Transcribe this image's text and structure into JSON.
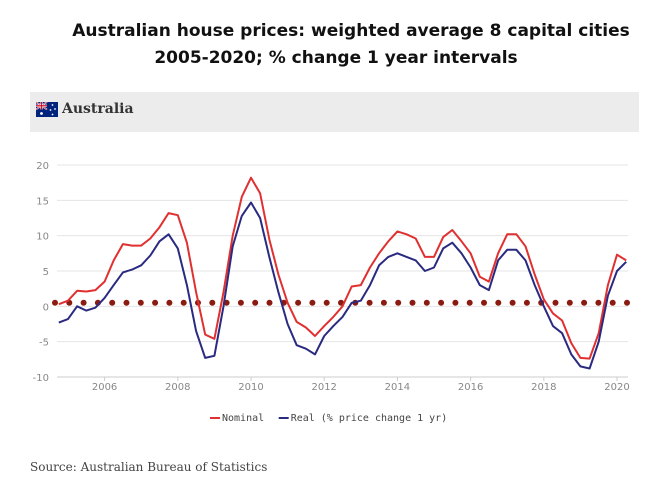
{
  "title_line1": "Australian house prices: weighted average 8 capital cities",
  "title_line2": "2005-2020; % change 1 year intervals",
  "banner": {
    "label": "Australia",
    "flag_icon": "australia-flag-icon"
  },
  "source": "Source: Australian Bureau of Statistics",
  "chart_data": {
    "type": "line",
    "xlim": [
      2004.7,
      2020.3
    ],
    "ylim": [
      -10,
      20
    ],
    "yticks": [
      -10,
      -5,
      0,
      5,
      10,
      15,
      20
    ],
    "xticks": [
      2006,
      2008,
      2010,
      2012,
      2014,
      2016,
      2018,
      2020
    ],
    "grid": "horizontal",
    "legend_position": "bottom",
    "reference_line": {
      "y": 0.5,
      "style": "dotted",
      "color": "#8b1a10"
    },
    "series": [
      {
        "name": "Nominal",
        "color": "#e03030",
        "x": [
          2004.75,
          2005.0,
          2005.25,
          2005.5,
          2005.75,
          2006.0,
          2006.25,
          2006.5,
          2006.75,
          2007.0,
          2007.25,
          2007.5,
          2007.75,
          2008.0,
          2008.25,
          2008.5,
          2008.75,
          2009.0,
          2009.25,
          2009.5,
          2009.75,
          2010.0,
          2010.25,
          2010.5,
          2010.75,
          2011.0,
          2011.25,
          2011.5,
          2011.75,
          2012.0,
          2012.25,
          2012.5,
          2012.75,
          2013.0,
          2013.25,
          2013.5,
          2013.75,
          2014.0,
          2014.25,
          2014.5,
          2014.75,
          2015.0,
          2015.25,
          2015.5,
          2015.75,
          2016.0,
          2016.25,
          2016.5,
          2016.75,
          2017.0,
          2017.25,
          2017.5,
          2017.75,
          2018.0,
          2018.25,
          2018.5,
          2018.75,
          2019.0,
          2019.25,
          2019.5,
          2019.75,
          2020.0,
          2020.25
        ],
        "values": [
          0.3,
          0.8,
          2.2,
          2.1,
          2.3,
          3.5,
          6.5,
          8.8,
          8.6,
          8.6,
          9.6,
          11.2,
          13.2,
          12.9,
          9.0,
          2.0,
          -4.0,
          -4.6,
          2.0,
          10.0,
          15.5,
          18.2,
          16.0,
          9.5,
          4.5,
          0.5,
          -2.2,
          -3.0,
          -4.2,
          -2.8,
          -1.5,
          0.0,
          2.8,
          3.0,
          5.5,
          7.5,
          9.2,
          10.6,
          10.2,
          9.6,
          7.0,
          7.0,
          9.8,
          10.8,
          9.2,
          7.5,
          4.2,
          3.5,
          7.5,
          10.2,
          10.2,
          8.5,
          4.5,
          1.0,
          -1.0,
          -2.0,
          -5.2,
          -7.3,
          -7.4,
          -3.8,
          3.0,
          7.3,
          6.5
        ]
      },
      {
        "name": "Real (% price change 1 yr)",
        "color": "#2a2a80",
        "x": [
          2004.75,
          2005.0,
          2005.25,
          2005.5,
          2005.75,
          2006.0,
          2006.25,
          2006.5,
          2006.75,
          2007.0,
          2007.25,
          2007.5,
          2007.75,
          2008.0,
          2008.25,
          2008.5,
          2008.75,
          2009.0,
          2009.25,
          2009.5,
          2009.75,
          2010.0,
          2010.25,
          2010.5,
          2010.75,
          2011.0,
          2011.25,
          2011.5,
          2011.75,
          2012.0,
          2012.25,
          2012.5,
          2012.75,
          2013.0,
          2013.25,
          2013.5,
          2013.75,
          2014.0,
          2014.25,
          2014.5,
          2014.75,
          2015.0,
          2015.25,
          2015.5,
          2015.75,
          2016.0,
          2016.25,
          2016.5,
          2016.75,
          2017.0,
          2017.25,
          2017.5,
          2017.75,
          2018.0,
          2018.25,
          2018.5,
          2018.75,
          2019.0,
          2019.25,
          2019.5,
          2019.75,
          2020.0,
          2020.25
        ],
        "values": [
          -2.3,
          -1.8,
          0.0,
          -0.6,
          -0.2,
          1.2,
          3.0,
          4.8,
          5.2,
          5.8,
          7.2,
          9.2,
          10.2,
          8.2,
          3.0,
          -3.5,
          -7.3,
          -7.0,
          0.0,
          8.5,
          12.8,
          14.7,
          12.5,
          7.0,
          2.0,
          -2.5,
          -5.5,
          -6.0,
          -6.8,
          -4.2,
          -2.8,
          -1.5,
          0.5,
          0.8,
          3.0,
          5.8,
          7.0,
          7.5,
          7.0,
          6.5,
          5.0,
          5.5,
          8.2,
          9.0,
          7.5,
          5.5,
          3.0,
          2.3,
          6.5,
          8.0,
          8.0,
          6.5,
          3.0,
          0.0,
          -2.8,
          -3.8,
          -6.8,
          -8.5,
          -8.8,
          -5.0,
          1.5,
          5.0,
          6.3
        ]
      }
    ]
  }
}
